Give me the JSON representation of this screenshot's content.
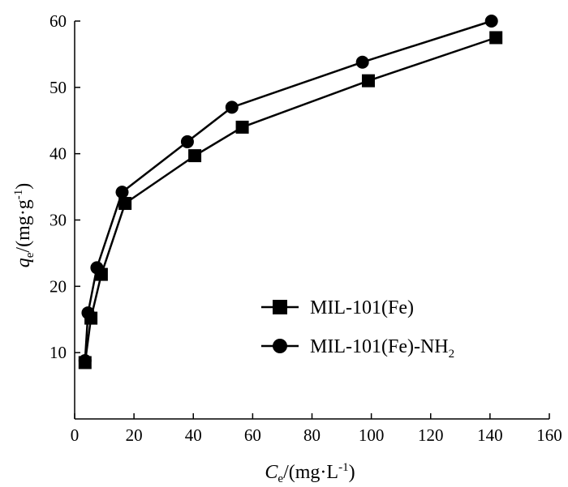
{
  "chart_data": {
    "type": "line",
    "x_axis": {
      "label_main": "C",
      "label_sub": "e",
      "label_unit": "/(mg·L",
      "label_sup": "-1",
      "label_close": ")",
      "range": [
        0,
        160
      ],
      "ticks": [
        0,
        20,
        40,
        60,
        80,
        100,
        120,
        140,
        160
      ]
    },
    "y_axis": {
      "label_main": "q",
      "label_sub": "e",
      "label_unit": "/(mg·g",
      "label_sup": "-1",
      "label_close": ")",
      "range": [
        0,
        60
      ],
      "ticks": [
        10,
        20,
        30,
        40,
        50,
        60
      ]
    },
    "legend": {
      "placement": "center-right"
    },
    "grid": false,
    "series": [
      {
        "name": "MIL-101(Fe)",
        "marker": "square",
        "color": "#000000",
        "x": [
          3.5,
          5.5,
          9,
          17,
          40.5,
          56.5,
          99,
          142
        ],
        "y": [
          8.5,
          15.2,
          21.8,
          32.5,
          39.7,
          44.0,
          51.0,
          57.5
        ]
      },
      {
        "name": "MIL-101(Fe)-NH",
        "name_sub": "2",
        "marker": "circle",
        "color": "#000000",
        "x": [
          3.5,
          4.5,
          7.5,
          16,
          38,
          53,
          97,
          140.5
        ],
        "y": [
          8.8,
          16.0,
          22.8,
          34.2,
          41.8,
          47.0,
          53.8,
          60.0
        ]
      }
    ]
  }
}
